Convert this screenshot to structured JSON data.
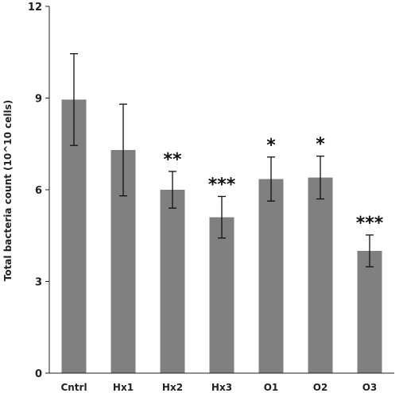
{
  "chart_data": {
    "type": "bar",
    "title": "",
    "xlabel": "",
    "ylabel": "Total bacteria count (10^10 cells)",
    "ylim": [
      0,
      12
    ],
    "yticks": [
      0,
      3,
      6,
      9,
      12
    ],
    "categories": [
      "Cntrl",
      "Hx1",
      "Hx2",
      "Hx3",
      "O1",
      "O2",
      "O3"
    ],
    "values": [
      8.95,
      7.3,
      6.0,
      5.1,
      6.35,
      6.4,
      4.0
    ],
    "errors": [
      1.5,
      1.5,
      0.6,
      0.68,
      0.72,
      0.7,
      0.52
    ],
    "significance": [
      "",
      "",
      "**",
      "***",
      "*",
      "*",
      "***"
    ],
    "bar_color": "#808080",
    "grid": false,
    "legend": "none"
  }
}
